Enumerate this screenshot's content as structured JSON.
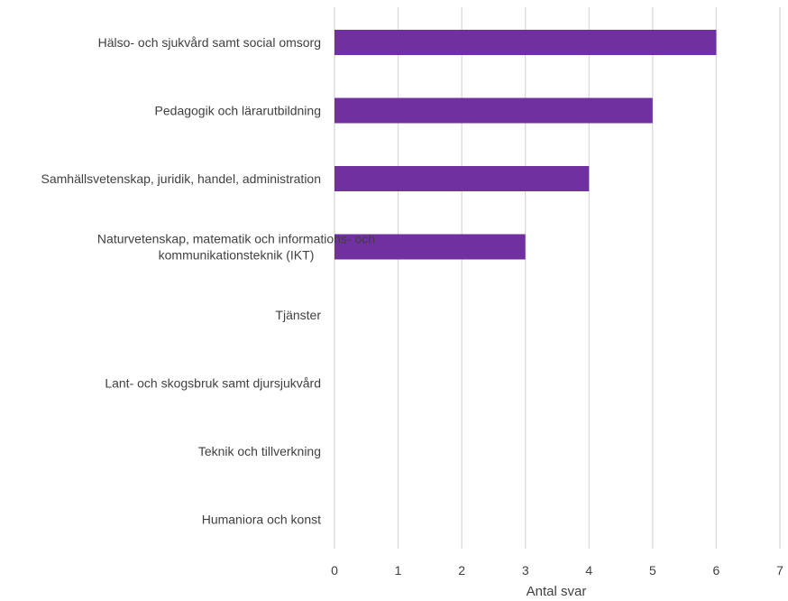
{
  "chart_data": {
    "type": "bar",
    "orientation": "horizontal",
    "categories": [
      [
        "Hälso- och sjukvård samt social omsorg"
      ],
      [
        "Pedagogik och lärarutbildning"
      ],
      [
        "Samhällsvetenskap, juridik, handel, administration"
      ],
      [
        "Naturvetenskap, matematik och informations- och",
        "kommunikationsteknik (IKT)"
      ],
      [
        "Tjänster"
      ],
      [
        "Lant- och skogsbruk samt djursjukvård"
      ],
      [
        "Teknik och tillverkning"
      ],
      [
        "Humaniora och konst"
      ]
    ],
    "values": [
      6,
      5,
      4,
      3,
      0,
      0,
      0,
      0
    ],
    "xlabel": "Antal svar",
    "ylabel": "",
    "xlim": [
      0,
      7
    ],
    "xticks": [
      0,
      1,
      2,
      3,
      4,
      5,
      6,
      7
    ],
    "grid": "vertical",
    "legend": "none",
    "bar_color": "#7030a0",
    "grid_color": "#d9d9d9",
    "text_color": "#404040"
  }
}
